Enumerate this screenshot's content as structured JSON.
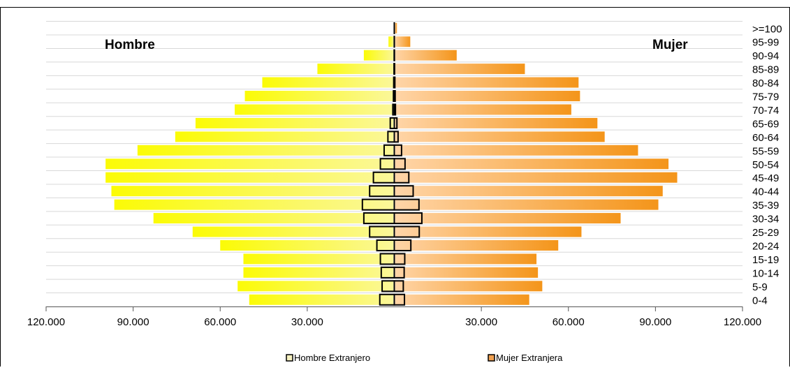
{
  "chart_data": {
    "type": "bar",
    "orientation": "horizontal",
    "left_label": "Hombre",
    "right_label": "Mujer",
    "categories": [
      "0-4",
      "5-9",
      "10-14",
      "15-19",
      "20-24",
      "25-29",
      "30-34",
      "35-39",
      "40-44",
      "45-49",
      "50-54",
      "55-59",
      "60-64",
      "65-69",
      "70-74",
      "75-79",
      "80-84",
      "85-89",
      "90-94",
      "95-99",
      ">=100"
    ],
    "series": [
      {
        "name": "",
        "side": "left",
        "values": [
          50000,
          54000,
          52000,
          52000,
          60000,
          69500,
          83000,
          96500,
          97500,
          99500,
          99500,
          88500,
          75500,
          68500,
          55000,
          51500,
          45500,
          26500,
          10500,
          2000,
          100
        ]
      },
      {
        "name": "",
        "side": "right",
        "values": [
          46500,
          51000,
          49500,
          49000,
          56500,
          64500,
          78000,
          91000,
          92500,
          97500,
          94500,
          84000,
          72500,
          70000,
          61000,
          64000,
          63500,
          45000,
          21500,
          5500,
          900
        ]
      },
      {
        "name": "Hombre Extranjero",
        "side": "left",
        "values": [
          5000,
          4200,
          4500,
          4800,
          6000,
          8500,
          10500,
          11000,
          8500,
          7200,
          4800,
          3500,
          2200,
          1400,
          500,
          300,
          200,
          100,
          50,
          20,
          5
        ]
      },
      {
        "name": "Mujer Extranjera",
        "side": "right",
        "values": [
          3500,
          3100,
          3400,
          3600,
          5700,
          8600,
          9500,
          8500,
          6500,
          5000,
          3700,
          2500,
          1300,
          900,
          400,
          300,
          200,
          100,
          50,
          20,
          5
        ]
      }
    ],
    "x_range": [
      -120000,
      120000
    ],
    "x_ticks": [
      {
        "value": -120000,
        "label": "120.000"
      },
      {
        "value": -90000,
        "label": "90.000"
      },
      {
        "value": -60000,
        "label": "60.000"
      },
      {
        "value": -30000,
        "label": "30.000"
      },
      {
        "value": 30000,
        "label": "30.000"
      },
      {
        "value": 60000,
        "label": "60.000"
      },
      {
        "value": 90000,
        "label": "90.000"
      },
      {
        "value": 120000,
        "label": "120.000"
      }
    ],
    "legend": [
      {
        "label": "Hombre Extranjero",
        "color": "#f5f0c0"
      },
      {
        "label": "Mujer Extranjera",
        "color": "#f0a050"
      }
    ],
    "legend_position": "bottom",
    "grid": true,
    "colors": {
      "male_light": "#fbf79a",
      "male_dark": "#fbfb06",
      "female_light": "#ffd5a8",
      "female_dark": "#f4951a",
      "foreign_border": "#000000"
    }
  }
}
